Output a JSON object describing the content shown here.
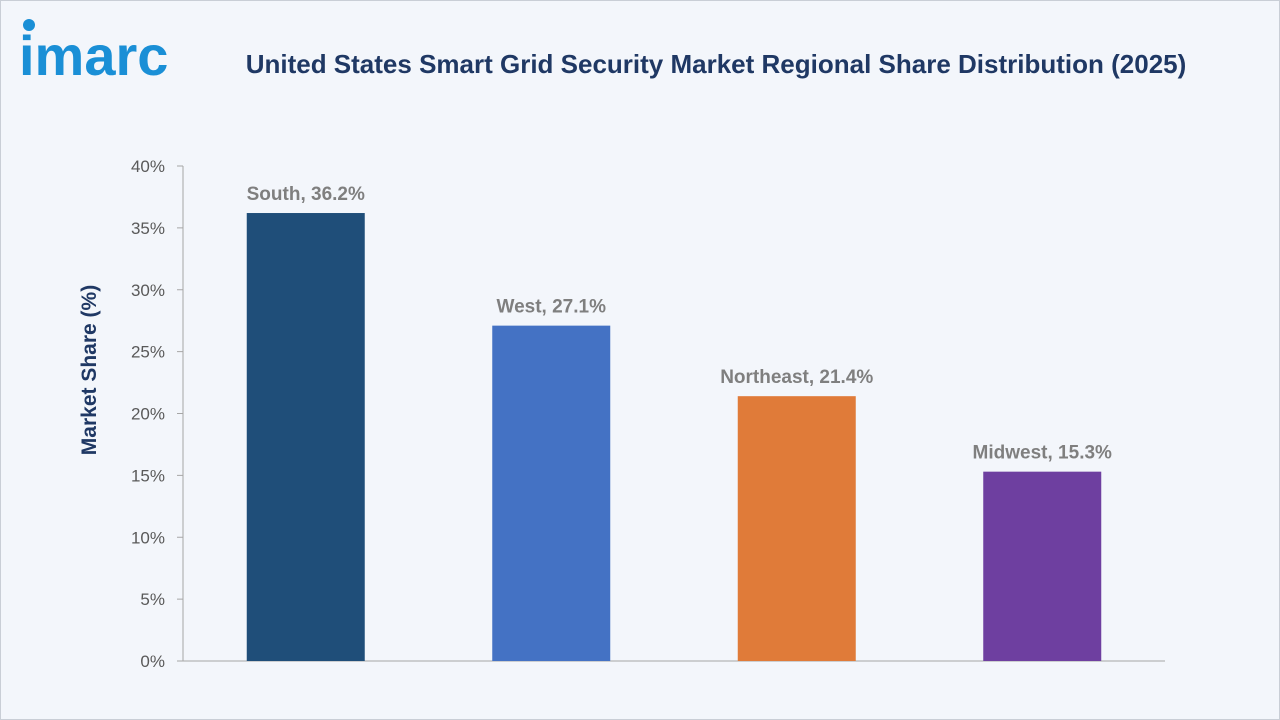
{
  "brand": {
    "logo_text": "imarc",
    "color": "#1a8fd6"
  },
  "chart_data": {
    "type": "bar",
    "title": "United States Smart Grid Security Market Regional Share Distribution (2025)",
    "xlabel": "",
    "ylabel": "Market Share (%)",
    "ylim": [
      0,
      40
    ],
    "yticks": [
      0,
      5,
      10,
      15,
      20,
      25,
      30,
      35,
      40
    ],
    "ytick_labels": [
      "0%",
      "5%",
      "10%",
      "15%",
      "20%",
      "25%",
      "30%",
      "35%",
      "40%"
    ],
    "categories": [
      "South",
      "West",
      "Northeast",
      "Midwest"
    ],
    "values": [
      36.2,
      27.1,
      21.4,
      15.3
    ],
    "data_labels": [
      "South, 36.2%",
      "West, 27.1%",
      "Northeast, 21.4%",
      "Midwest, 15.3%"
    ],
    "colors": [
      "#1f4e79",
      "#4472c4",
      "#e07b39",
      "#6e3fa0"
    ],
    "grid": false,
    "legend": "none"
  }
}
